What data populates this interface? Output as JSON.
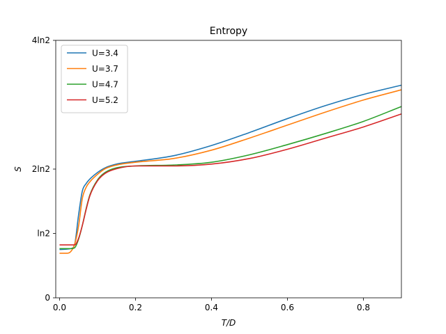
{
  "chart_data": {
    "type": "line",
    "title": "Entropy",
    "xlabel": "T/D",
    "ylabel": "S",
    "xlim": [
      -0.01,
      0.9
    ],
    "ylim": [
      0,
      2.7726
    ],
    "x_ticks": [
      {
        "value": 0.0,
        "label": "0.0"
      },
      {
        "value": 0.2,
        "label": "0.2"
      },
      {
        "value": 0.4,
        "label": "0.4"
      },
      {
        "value": 0.6,
        "label": "0.6"
      },
      {
        "value": 0.8,
        "label": "0.8"
      }
    ],
    "y_ticks": [
      {
        "value": 0,
        "label": "0"
      },
      {
        "value": 0.6931,
        "label": "ln2"
      },
      {
        "value": 1.3863,
        "label": "2ln2"
      },
      {
        "value": 2.7726,
        "label": "4ln2"
      }
    ],
    "legend": "top-left",
    "grid": false,
    "series": [
      {
        "name": "U=3.4",
        "color": "#1f77b4",
        "points": [
          [
            0.0,
            0.52
          ],
          [
            0.03,
            0.53
          ],
          [
            0.04,
            0.58
          ],
          [
            0.05,
            0.89
          ],
          [
            0.06,
            1.15
          ],
          [
            0.07,
            1.23
          ],
          [
            0.08,
            1.28
          ],
          [
            0.1,
            1.35
          ],
          [
            0.12,
            1.4
          ],
          [
            0.15,
            1.44
          ],
          [
            0.2,
            1.47
          ],
          [
            0.3,
            1.53
          ],
          [
            0.4,
            1.64
          ],
          [
            0.5,
            1.78
          ],
          [
            0.6,
            1.93
          ],
          [
            0.7,
            2.07
          ],
          [
            0.8,
            2.19
          ],
          [
            0.9,
            2.29
          ]
        ]
      },
      {
        "name": "U=3.7",
        "color": "#ff7f0e",
        "points": [
          [
            0.0,
            0.48
          ],
          [
            0.02,
            0.48
          ],
          [
            0.03,
            0.5
          ],
          [
            0.04,
            0.58
          ],
          [
            0.05,
            0.77
          ],
          [
            0.06,
            1.07
          ],
          [
            0.07,
            1.19
          ],
          [
            0.08,
            1.25
          ],
          [
            0.1,
            1.33
          ],
          [
            0.12,
            1.39
          ],
          [
            0.15,
            1.43
          ],
          [
            0.2,
            1.46
          ],
          [
            0.3,
            1.5
          ],
          [
            0.4,
            1.59
          ],
          [
            0.5,
            1.72
          ],
          [
            0.6,
            1.86
          ],
          [
            0.7,
            2.0
          ],
          [
            0.8,
            2.13
          ],
          [
            0.9,
            2.24
          ]
        ]
      },
      {
        "name": "U=4.7",
        "color": "#2ca02c",
        "points": [
          [
            0.0,
            0.53
          ],
          [
            0.03,
            0.53
          ],
          [
            0.04,
            0.54
          ],
          [
            0.05,
            0.63
          ],
          [
            0.06,
            0.78
          ],
          [
            0.07,
            0.96
          ],
          [
            0.08,
            1.11
          ],
          [
            0.1,
            1.27
          ],
          [
            0.12,
            1.35
          ],
          [
            0.15,
            1.4
          ],
          [
            0.2,
            1.42
          ],
          [
            0.3,
            1.43
          ],
          [
            0.4,
            1.46
          ],
          [
            0.5,
            1.54
          ],
          [
            0.6,
            1.65
          ],
          [
            0.7,
            1.77
          ],
          [
            0.8,
            1.9
          ],
          [
            0.9,
            2.06
          ]
        ]
      },
      {
        "name": "U=5.2",
        "color": "#d62728",
        "points": [
          [
            0.0,
            0.57
          ],
          [
            0.03,
            0.57
          ],
          [
            0.04,
            0.57
          ],
          [
            0.05,
            0.64
          ],
          [
            0.06,
            0.78
          ],
          [
            0.07,
            0.95
          ],
          [
            0.08,
            1.1
          ],
          [
            0.1,
            1.26
          ],
          [
            0.12,
            1.34
          ],
          [
            0.15,
            1.39
          ],
          [
            0.2,
            1.42
          ],
          [
            0.3,
            1.42
          ],
          [
            0.4,
            1.44
          ],
          [
            0.5,
            1.5
          ],
          [
            0.6,
            1.6
          ],
          [
            0.7,
            1.72
          ],
          [
            0.8,
            1.84
          ],
          [
            0.9,
            1.98
          ]
        ]
      }
    ]
  }
}
